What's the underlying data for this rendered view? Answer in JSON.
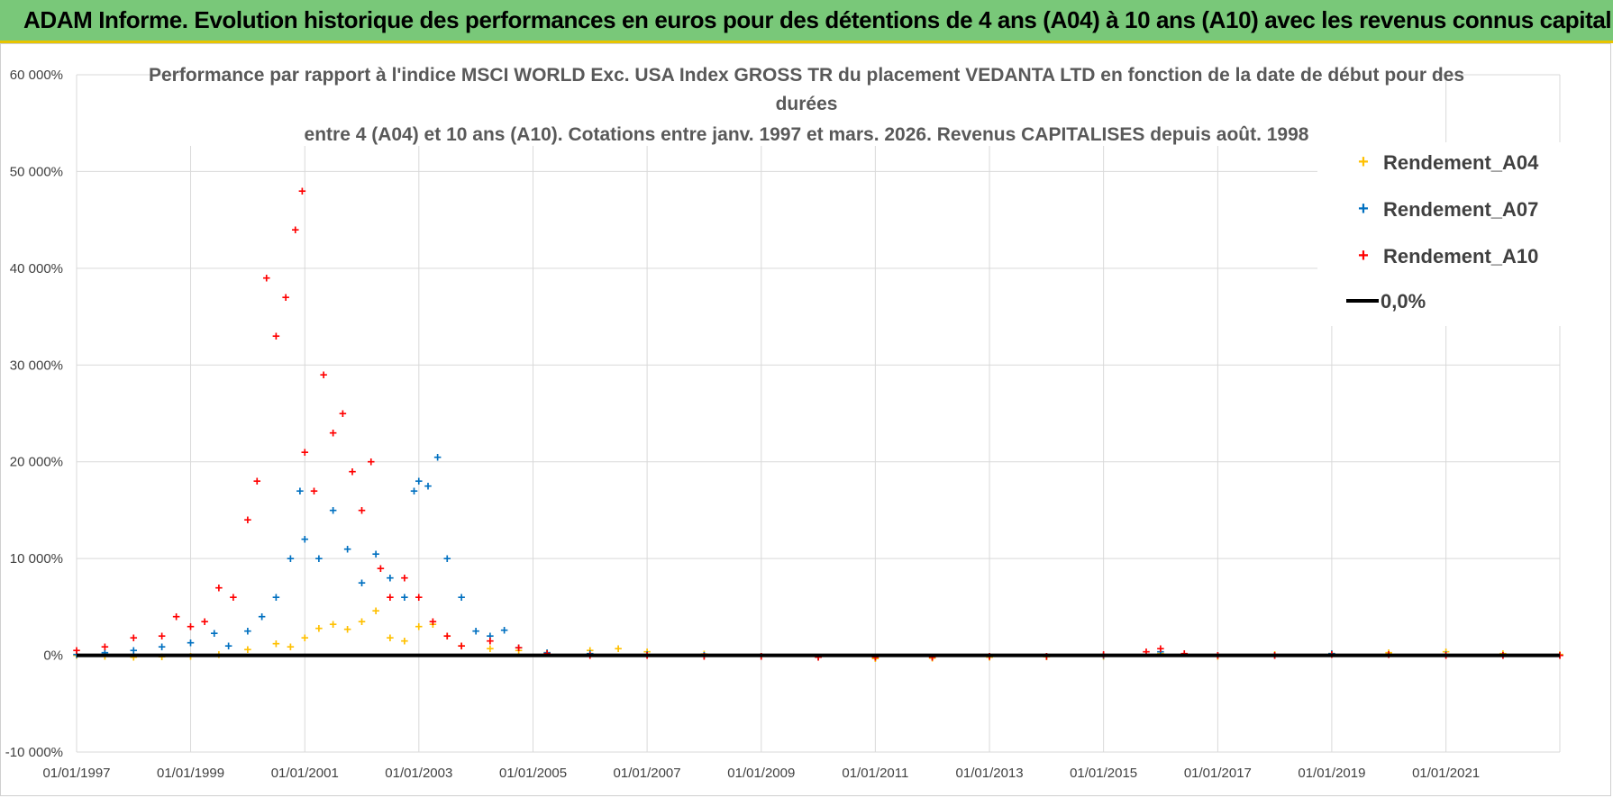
{
  "header": {
    "banner_title": "ADAM Informe. Evolution historique des performances en euros pour des détentions de 4 ans (A04) à 10 ans (A10) avec les revenus connus capitalisés"
  },
  "colors": {
    "banner_bg": "#79c879",
    "banner_border": "#e8c400",
    "A04": "#ffc000",
    "A07": "#0070c0",
    "A10": "#ff0000",
    "zero": "#000000",
    "grid": "#d9d9d9"
  },
  "chart_data": {
    "type": "scatter",
    "title": [
      "Performance par rapport à l'indice MSCI WORLD Exc. USA Index GROSS TR  du placement VEDANTA LTD en fonction de la date de début pour des",
      "durées",
      "entre 4 (A04) et 10 ans (A10). Cotations entre janv. 1997 et mars. 2026. Revenus CAPITALISES depuis août. 1998"
    ],
    "xlabel": "",
    "ylabel": "",
    "xlim": [
      "1997-01-01",
      "2022-12-31"
    ],
    "ylim": [
      -10000,
      60000
    ],
    "x_ticks": [
      "01/01/1997",
      "01/01/1999",
      "01/01/2001",
      "01/01/2003",
      "01/01/2005",
      "01/01/2007",
      "01/01/2009",
      "01/01/2011",
      "01/01/2013",
      "01/01/2015",
      "01/01/2017",
      "01/01/2019",
      "01/01/2021"
    ],
    "y_ticks": [
      "60 000%",
      "50 000%",
      "40 000%",
      "30 000%",
      "20 000%",
      "10 000%",
      "0%",
      "-10 000%"
    ],
    "grid": true,
    "legend_position": "top-right",
    "series": [
      {
        "name": "Rendement_A04",
        "marker": "+",
        "points": [
          [
            "1997-01-01",
            0
          ],
          [
            "1997-07-01",
            -100
          ],
          [
            "1998-01-01",
            -200
          ],
          [
            "1998-07-01",
            -150
          ],
          [
            "1999-01-01",
            -100
          ],
          [
            "1999-07-01",
            100
          ],
          [
            "2000-01-01",
            600
          ],
          [
            "2000-07-01",
            1200
          ],
          [
            "2000-10-01",
            900
          ],
          [
            "2001-01-01",
            1800
          ],
          [
            "2001-04-01",
            2800
          ],
          [
            "2001-07-01",
            3200
          ],
          [
            "2001-10-01",
            2700
          ],
          [
            "2002-01-01",
            3500
          ],
          [
            "2002-04-01",
            4600
          ],
          [
            "2002-07-01",
            1800
          ],
          [
            "2002-10-01",
            1500
          ],
          [
            "2003-01-01",
            3000
          ],
          [
            "2003-04-01",
            3200
          ],
          [
            "2003-07-01",
            2000
          ],
          [
            "2003-10-01",
            1000
          ],
          [
            "2004-04-01",
            700
          ],
          [
            "2004-10-01",
            500
          ],
          [
            "2005-04-01",
            300
          ],
          [
            "2006-01-01",
            500
          ],
          [
            "2006-07-01",
            700
          ],
          [
            "2007-01-01",
            400
          ],
          [
            "2008-01-01",
            150
          ],
          [
            "2009-01-01",
            -100
          ],
          [
            "2010-01-01",
            -200
          ],
          [
            "2011-01-01",
            -300
          ],
          [
            "2012-01-01",
            -250
          ],
          [
            "2013-01-01",
            -200
          ],
          [
            "2014-01-01",
            -150
          ],
          [
            "2015-01-01",
            -100
          ],
          [
            "2016-01-01",
            200
          ],
          [
            "2017-01-01",
            -100
          ],
          [
            "2018-01-01",
            100
          ],
          [
            "2019-01-01",
            200
          ],
          [
            "2020-01-01",
            300
          ],
          [
            "2021-01-01",
            400
          ],
          [
            "2022-01-01",
            200
          ],
          [
            "2022-12-31",
            100
          ]
        ]
      },
      {
        "name": "Rendement_A07",
        "marker": "+",
        "points": [
          [
            "1997-01-01",
            100
          ],
          [
            "1997-07-01",
            300
          ],
          [
            "1998-01-01",
            500
          ],
          [
            "1998-07-01",
            900
          ],
          [
            "1999-01-01",
            1300
          ],
          [
            "1999-06-01",
            2300
          ],
          [
            "1999-09-01",
            1000
          ],
          [
            "2000-01-01",
            2500
          ],
          [
            "2000-04-01",
            4000
          ],
          [
            "2000-07-01",
            6000
          ],
          [
            "2000-10-01",
            10000
          ],
          [
            "2000-12-01",
            17000
          ],
          [
            "2001-01-01",
            12000
          ],
          [
            "2001-04-01",
            10000
          ],
          [
            "2001-07-01",
            15000
          ],
          [
            "2001-10-01",
            11000
          ],
          [
            "2002-01-01",
            7500
          ],
          [
            "2002-04-01",
            10500
          ],
          [
            "2002-07-01",
            8000
          ],
          [
            "2002-10-01",
            6000
          ],
          [
            "2002-12-01",
            17000
          ],
          [
            "2003-01-01",
            18000
          ],
          [
            "2003-03-01",
            17500
          ],
          [
            "2003-05-01",
            20500
          ],
          [
            "2003-07-01",
            10000
          ],
          [
            "2003-10-01",
            6000
          ],
          [
            "2004-01-01",
            2500
          ],
          [
            "2004-04-01",
            2000
          ],
          [
            "2004-07-01",
            2600
          ],
          [
            "2004-10-01",
            800
          ],
          [
            "2005-04-01",
            300
          ],
          [
            "2006-01-01",
            200
          ],
          [
            "2007-01-01",
            100
          ],
          [
            "2008-01-01",
            0
          ],
          [
            "2009-01-01",
            -100
          ],
          [
            "2010-01-01",
            -200
          ],
          [
            "2011-01-01",
            -200
          ],
          [
            "2012-01-01",
            -200
          ],
          [
            "2013-01-01",
            -100
          ],
          [
            "2014-01-01",
            -100
          ],
          [
            "2015-01-01",
            0
          ],
          [
            "2016-01-01",
            400
          ],
          [
            "2017-01-01",
            0
          ],
          [
            "2018-01-01",
            0
          ],
          [
            "2019-01-01",
            200
          ],
          [
            "2020-01-01",
            100
          ],
          [
            "2021-01-01",
            100
          ],
          [
            "2022-01-01",
            0
          ],
          [
            "2022-12-31",
            0
          ]
        ]
      },
      {
        "name": "Rendement_A10",
        "marker": "+",
        "points": [
          [
            "1997-01-01",
            500
          ],
          [
            "1997-07-01",
            900
          ],
          [
            "1998-01-01",
            1800
          ],
          [
            "1998-07-01",
            2000
          ],
          [
            "1998-10-01",
            4000
          ],
          [
            "1999-01-01",
            3000
          ],
          [
            "1999-04-01",
            3500
          ],
          [
            "1999-07-01",
            7000
          ],
          [
            "1999-10-01",
            6000
          ],
          [
            "2000-01-01",
            14000
          ],
          [
            "2000-03-01",
            18000
          ],
          [
            "2000-05-01",
            39000
          ],
          [
            "2000-07-01",
            33000
          ],
          [
            "2000-09-01",
            37000
          ],
          [
            "2000-11-01",
            44000
          ],
          [
            "2000-12-15",
            48000
          ],
          [
            "2001-01-01",
            21000
          ],
          [
            "2001-03-01",
            17000
          ],
          [
            "2001-05-01",
            29000
          ],
          [
            "2001-07-01",
            23000
          ],
          [
            "2001-09-01",
            25000
          ],
          [
            "2001-11-01",
            19000
          ],
          [
            "2002-01-01",
            15000
          ],
          [
            "2002-03-01",
            20000
          ],
          [
            "2002-05-01",
            9000
          ],
          [
            "2002-07-01",
            6000
          ],
          [
            "2002-10-01",
            8000
          ],
          [
            "2003-01-01",
            6000
          ],
          [
            "2003-04-01",
            3500
          ],
          [
            "2003-07-01",
            2000
          ],
          [
            "2003-10-01",
            1000
          ],
          [
            "2004-04-01",
            1500
          ],
          [
            "2004-10-01",
            800
          ],
          [
            "2005-04-01",
            200
          ],
          [
            "2006-01-01",
            0
          ],
          [
            "2007-01-01",
            0
          ],
          [
            "2008-01-01",
            -100
          ],
          [
            "2009-01-01",
            -100
          ],
          [
            "2010-01-01",
            -200
          ],
          [
            "2011-01-01",
            -200
          ],
          [
            "2012-01-01",
            -200
          ],
          [
            "2013-01-01",
            -100
          ],
          [
            "2014-01-01",
            -100
          ],
          [
            "2015-01-01",
            100
          ],
          [
            "2015-10-01",
            400
          ],
          [
            "2016-01-01",
            700
          ],
          [
            "2016-06-01",
            200
          ],
          [
            "2017-01-01",
            0
          ],
          [
            "2018-01-01",
            0
          ],
          [
            "2019-01-01",
            100
          ],
          [
            "2020-01-01",
            100
          ],
          [
            "2021-01-01",
            0
          ],
          [
            "2022-01-01",
            0
          ],
          [
            "2022-12-31",
            0
          ]
        ]
      },
      {
        "name": "0,0%",
        "marker": "line",
        "points": [
          [
            "1997-01-01",
            0
          ],
          [
            "2022-12-31",
            0
          ]
        ]
      }
    ]
  }
}
